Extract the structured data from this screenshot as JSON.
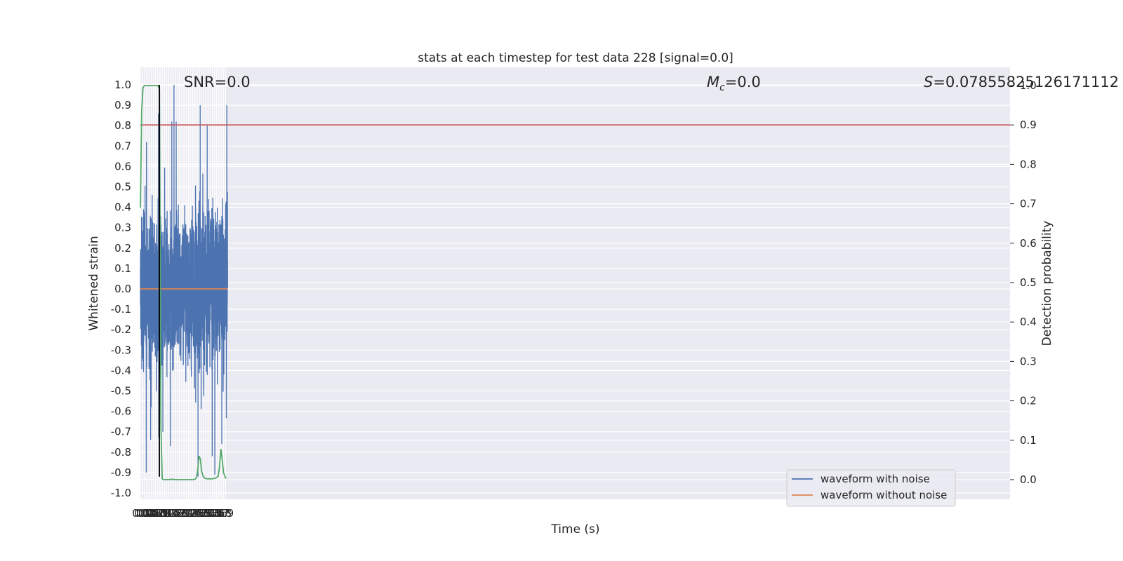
{
  "chart_data": {
    "type": "line",
    "title": "stats at each timestep for test data 228 [signal=0.0]",
    "xlabel": "Time (s)",
    "ylabel_left": "Whitened strain",
    "ylabel_right": "Detection probability",
    "xlim": [
      0.0,
      4.0
    ],
    "ylim_left": [
      -1.05,
      1.05
    ],
    "ylim_right": [
      -0.045,
      1.0
    ],
    "grid": true,
    "x_ticks": [
      "0.0",
      "0.1",
      "0.2",
      "0.3",
      "0.4",
      "0.5",
      "0.6",
      "0.7",
      "0.8",
      "0.9",
      "1.0",
      "1.1",
      "1.2",
      "1.3",
      "1.4",
      "1.5",
      "1.6",
      "1.7",
      "1.8",
      "1.9",
      "2.0",
      "2.1",
      "2.2",
      "2.3",
      "2.4",
      "2.5",
      "2.6",
      "2.7",
      "2.8",
      "2.9",
      "3.0",
      "3.1",
      "3.2",
      "3.3",
      "3.4",
      "3.5",
      "3.6",
      "3.7",
      "3.8",
      "3.9"
    ],
    "y_ticks_left": [
      "1.0",
      "0.9",
      "0.8",
      "0.7",
      "0.6",
      "0.5",
      "0.4",
      "0.3",
      "0.2",
      "0.1",
      "0.0",
      "-0.1",
      "-0.2",
      "-0.3",
      "-0.4",
      "-0.5",
      "-0.6",
      "-0.7",
      "-0.8",
      "-0.9",
      "-1.0"
    ],
    "y_ticks_right": [
      "1.0",
      "0.9",
      "0.8",
      "0.7",
      "0.6",
      "0.5",
      "0.4",
      "0.3",
      "0.2",
      "0.1",
      "0.0"
    ],
    "annotations": {
      "snr": "SNR=0.0",
      "mc_symbol": "M",
      "mc_sub": "c",
      "mc_value": "=0.0",
      "s_symbol": "S",
      "s_value": "=0.07855825126171112"
    },
    "legend": {
      "placement": "lower-right",
      "entries": [
        {
          "label": "waveform with noise",
          "color": "#4c72b0"
        },
        {
          "label": "waveform without noise",
          "color": "#dd8452"
        }
      ]
    },
    "series": [
      {
        "name": "waveform with noise",
        "axis": "left",
        "color": "#4c72b0",
        "kind": "noise",
        "sample_rate_hz": 2048,
        "upper_peaks": [
          [
            0.47,
            0.86
          ],
          [
            0.83,
            0.86
          ],
          [
            1.54,
            1.0
          ],
          [
            1.44,
            0.82
          ],
          [
            1.64,
            0.82
          ],
          [
            2.74,
            0.9
          ],
          [
            3.96,
            0.9
          ],
          [
            0.28,
            0.72
          ],
          [
            3.06,
            0.8
          ]
        ],
        "lower_peaks": [
          [
            0.27,
            -0.9
          ],
          [
            1.37,
            -0.77
          ],
          [
            2.64,
            -0.92
          ],
          [
            3.29,
            -0.82
          ],
          [
            3.41,
            -0.91
          ],
          [
            3.73,
            -0.76
          ],
          [
            0.47,
            -0.74
          ],
          [
            0.84,
            -0.73
          ],
          [
            1.03,
            -0.7
          ]
        ]
      },
      {
        "name": "waveform without noise",
        "axis": "left",
        "color": "#dd8452",
        "x": [
          0.0,
          4.0
        ],
        "y": [
          0.0,
          0.0
        ]
      },
      {
        "name": "detection probability",
        "axis": "right",
        "color": "#55a868",
        "x": [
          0.0,
          0.06,
          0.12,
          0.19,
          0.25,
          0.5,
          0.75,
          0.81,
          0.875,
          0.94,
          1.0,
          1.06,
          1.25,
          1.44,
          1.62,
          1.88,
          2.12,
          2.38,
          2.5,
          2.56,
          2.62,
          2.69,
          2.75,
          2.81,
          2.88,
          2.94,
          3.06,
          3.19,
          3.31,
          3.44,
          3.56,
          3.62,
          3.69,
          3.75,
          3.81,
          3.88,
          3.94
        ],
        "y": [
          0.69,
          0.935,
          0.995,
          1.0,
          1.0,
          1.0,
          1.0,
          1.0,
          0.99,
          0.14,
          0.002,
          0.0,
          0.0,
          0.001,
          0.0,
          0.0,
          0.0,
          0.0,
          0.001,
          0.004,
          0.02,
          0.06,
          0.052,
          0.02,
          0.008,
          0.004,
          0.002,
          0.002,
          0.002,
          0.004,
          0.008,
          0.03,
          0.078,
          0.05,
          0.018,
          0.007,
          0.003
        ]
      }
    ],
    "hlines": [
      {
        "axis": "right",
        "y": 0.9,
        "color": "#c44e52"
      }
    ],
    "vlines": [
      {
        "axis": "left",
        "x": 0.87,
        "y_range": [
          -0.92,
          1.0
        ],
        "color": "#000000"
      }
    ]
  }
}
